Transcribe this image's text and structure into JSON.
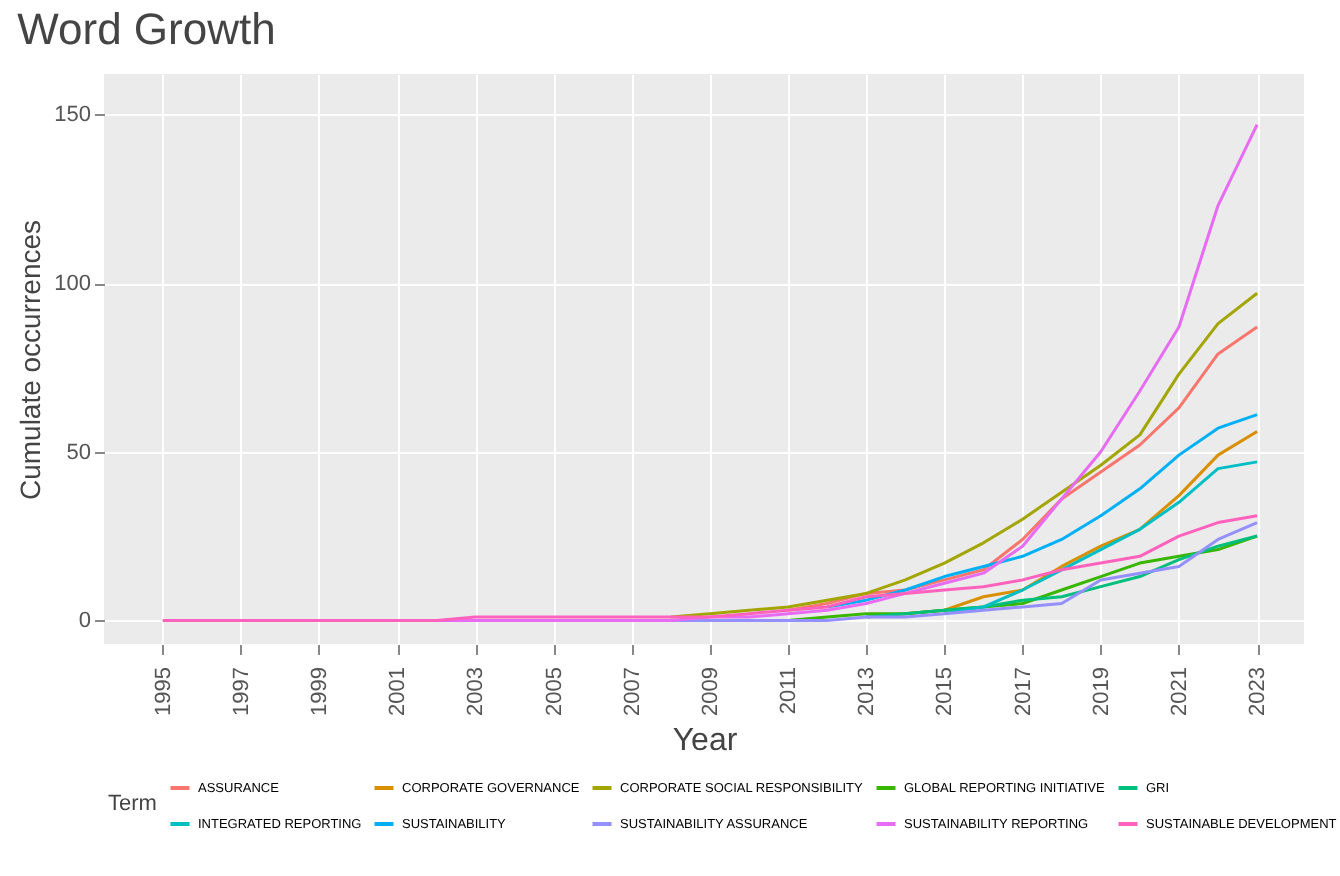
{
  "chart_data": {
    "type": "line",
    "title": "Word Growth",
    "xlabel": "Year",
    "ylabel": "Cumulate occurrences",
    "legend_title": "Term",
    "x": [
      1995,
      1996,
      1997,
      1998,
      1999,
      2000,
      2001,
      2002,
      2003,
      2004,
      2005,
      2006,
      2007,
      2008,
      2009,
      2010,
      2011,
      2012,
      2013,
      2014,
      2015,
      2016,
      2017,
      2018,
      2019,
      2020,
      2021,
      2022,
      2023
    ],
    "xlim": [
      1993.5,
      2024.2
    ],
    "xticks": [
      1995,
      1997,
      1999,
      2001,
      2003,
      2005,
      2007,
      2009,
      2011,
      2013,
      2015,
      2017,
      2019,
      2021,
      2023
    ],
    "ylim": [
      -7,
      162
    ],
    "yticks": [
      0,
      50,
      100,
      150
    ],
    "grid": true,
    "legend": "bottom",
    "marker": "none",
    "line_style": "solid",
    "series": [
      {
        "name": "ASSURANCE",
        "color": "#f8766d",
        "values": [
          null,
          null,
          null,
          null,
          null,
          null,
          null,
          null,
          null,
          null,
          null,
          null,
          null,
          null,
          null,
          null,
          3,
          5,
          8,
          9,
          12,
          15,
          24,
          36,
          44,
          52,
          63,
          79,
          87
        ]
      },
      {
        "name": "CORPORATE GOVERNANCE",
        "color": "#d89000",
        "values": [
          null,
          null,
          null,
          null,
          null,
          null,
          null,
          null,
          null,
          null,
          null,
          null,
          null,
          null,
          null,
          null,
          null,
          null,
          1,
          2,
          3,
          7,
          9,
          16,
          22,
          27,
          37,
          49,
          56
        ]
      },
      {
        "name": "CORPORATE SOCIAL RESPONSIBILITY",
        "color": "#a3a500",
        "values": [
          null,
          null,
          null,
          null,
          null,
          null,
          null,
          null,
          null,
          null,
          null,
          null,
          null,
          1,
          2,
          3,
          4,
          6,
          8,
          12,
          17,
          23,
          30,
          38,
          46,
          55,
          73,
          88,
          97
        ]
      },
      {
        "name": "GLOBAL REPORTING INITIATIVE",
        "color": "#39b600",
        "values": [
          null,
          null,
          null,
          null,
          null,
          null,
          null,
          null,
          null,
          null,
          null,
          null,
          null,
          null,
          null,
          null,
          0,
          1,
          2,
          2,
          3,
          4,
          5,
          9,
          13,
          17,
          19,
          21,
          25
        ]
      },
      {
        "name": "GRI",
        "color": "#00bf7d",
        "values": [
          null,
          null,
          null,
          null,
          null,
          null,
          null,
          null,
          null,
          null,
          null,
          null,
          null,
          null,
          null,
          null,
          null,
          null,
          1,
          2,
          3,
          4,
          6,
          7,
          10,
          13,
          18,
          22,
          25
        ]
      },
      {
        "name": "INTEGRATED REPORTING",
        "color": "#00bfc4",
        "values": [
          null,
          null,
          null,
          null,
          null,
          null,
          null,
          null,
          null,
          null,
          null,
          null,
          null,
          null,
          null,
          null,
          null,
          null,
          null,
          null,
          2,
          4,
          9,
          15,
          21,
          27,
          35,
          45,
          47
        ]
      },
      {
        "name": "SUSTAINABILITY",
        "color": "#00b0f6",
        "values": [
          null,
          null,
          null,
          null,
          null,
          null,
          null,
          null,
          null,
          null,
          null,
          null,
          null,
          null,
          null,
          null,
          null,
          4,
          6,
          9,
          13,
          16,
          19,
          24,
          31,
          39,
          49,
          57,
          61
        ]
      },
      {
        "name": "SUSTAINABILITY ASSURANCE",
        "color": "#9590ff",
        "values": [
          null,
          null,
          null,
          null,
          null,
          null,
          null,
          null,
          null,
          null,
          null,
          null,
          null,
          0,
          0,
          0,
          0,
          0,
          1,
          1,
          2,
          3,
          4,
          5,
          12,
          14,
          16,
          24,
          29
        ]
      },
      {
        "name": "SUSTAINABILITY REPORTING",
        "color": "#e76bf3",
        "values": [
          null,
          null,
          null,
          null,
          null,
          null,
          null,
          0,
          0,
          0,
          0,
          0,
          0,
          0,
          1,
          1,
          2,
          3,
          5,
          8,
          11,
          14,
          22,
          36,
          50,
          68,
          87,
          123,
          147
        ]
      },
      {
        "name": "SUSTAINABLE DEVELOPMENT",
        "color": "#ff62bc",
        "values": [
          0,
          0,
          0,
          0,
          0,
          0,
          0,
          0,
          1,
          1,
          1,
          1,
          1,
          1,
          1,
          2,
          3,
          4,
          7,
          8,
          9,
          10,
          12,
          15,
          17,
          19,
          25,
          29,
          31
        ]
      }
    ]
  }
}
